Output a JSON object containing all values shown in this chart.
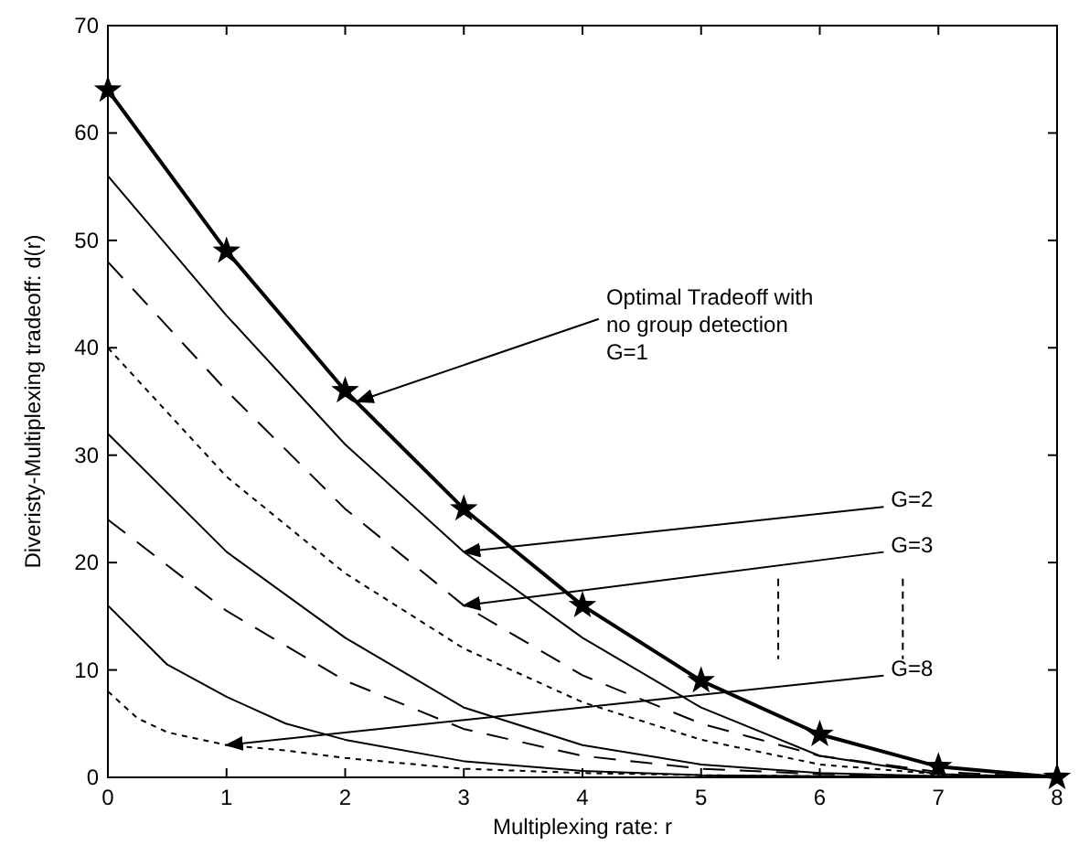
{
  "chart_data": {
    "type": "line",
    "xlabel": "Multiplexing rate: r",
    "ylabel": "Diveristy-Multiplexing tradeoff: d(r)",
    "xlim": [
      0,
      8
    ],
    "xticks": [
      0,
      1,
      2,
      3,
      4,
      5,
      6,
      7,
      8
    ],
    "ylim": [
      0,
      70
    ],
    "yticks": [
      0,
      10,
      20,
      30,
      40,
      50,
      60,
      70
    ],
    "grid": false,
    "series": [
      {
        "color": "#000000",
        "line_style": "solid",
        "marker": "star",
        "x": [
          0,
          1,
          2,
          3,
          4,
          5,
          6,
          7,
          8
        ],
        "values": [
          64,
          49,
          36,
          25,
          16,
          9,
          4,
          1,
          0
        ]
      },
      {
        "color": "#000000",
        "line_style": "solid",
        "marker": "none",
        "x": [
          0,
          1,
          2,
          3,
          4,
          5,
          6,
          7,
          8
        ],
        "values": [
          56,
          43,
          31,
          21,
          13,
          6.5,
          2,
          0.3,
          0
        ]
      },
      {
        "color": "#000000",
        "line_style": "dashed",
        "marker": "none",
        "x": [
          0,
          1,
          2,
          3,
          4,
          5,
          6,
          7,
          8
        ],
        "values": [
          48,
          36,
          25,
          16,
          9.5,
          5,
          2,
          0.5,
          0
        ]
      },
      {
        "color": "#000000",
        "line_style": "dotted",
        "marker": "none",
        "x": [
          0,
          1,
          2,
          3,
          4,
          5,
          6,
          7,
          8
        ],
        "values": [
          40,
          28,
          19,
          12,
          7,
          3.5,
          1.2,
          0.3,
          0
        ]
      },
      {
        "color": "#000000",
        "line_style": "solid",
        "marker": "none",
        "x": [
          0,
          1,
          2,
          3,
          4,
          5,
          6,
          7,
          8
        ],
        "values": [
          32,
          21,
          13,
          6.5,
          3,
          1.2,
          0.4,
          0.1,
          0
        ]
      },
      {
        "color": "#000000",
        "line_style": "dashed",
        "marker": "none",
        "x": [
          0,
          1,
          2,
          3,
          4,
          5,
          6,
          7,
          8
        ],
        "values": [
          24,
          15.5,
          9,
          4.5,
          2,
          0.8,
          0.3,
          0.1,
          0
        ]
      },
      {
        "color": "#000000",
        "line_style": "solid",
        "marker": "none",
        "x": [
          0,
          0.5,
          1,
          1.5,
          2,
          3,
          4,
          5,
          6,
          8
        ],
        "values": [
          16,
          10.5,
          7.5,
          5,
          3.5,
          1.5,
          0.6,
          0.2,
          0.1,
          0
        ]
      },
      {
        "color": "#000000",
        "line_style": "dotted",
        "marker": "none",
        "x": [
          0,
          0.25,
          0.5,
          1,
          1.5,
          2,
          3,
          4,
          5,
          6,
          7,
          8
        ],
        "values": [
          8,
          5.5,
          4.2,
          3,
          2.5,
          1.8,
          0.8,
          0.4,
          0.2,
          0.1,
          0,
          0
        ]
      }
    ],
    "annotations": [
      {
        "text": "Optimal Tradeoff with\nno group detection\nG=1",
        "x": 2.1,
        "y": 35
      },
      {
        "text": "G=2",
        "x": 3,
        "y": 21
      },
      {
        "text": "G=3",
        "x": 3,
        "y": 16
      },
      {
        "text": "G=8",
        "x": 1,
        "y": 3
      }
    ]
  }
}
